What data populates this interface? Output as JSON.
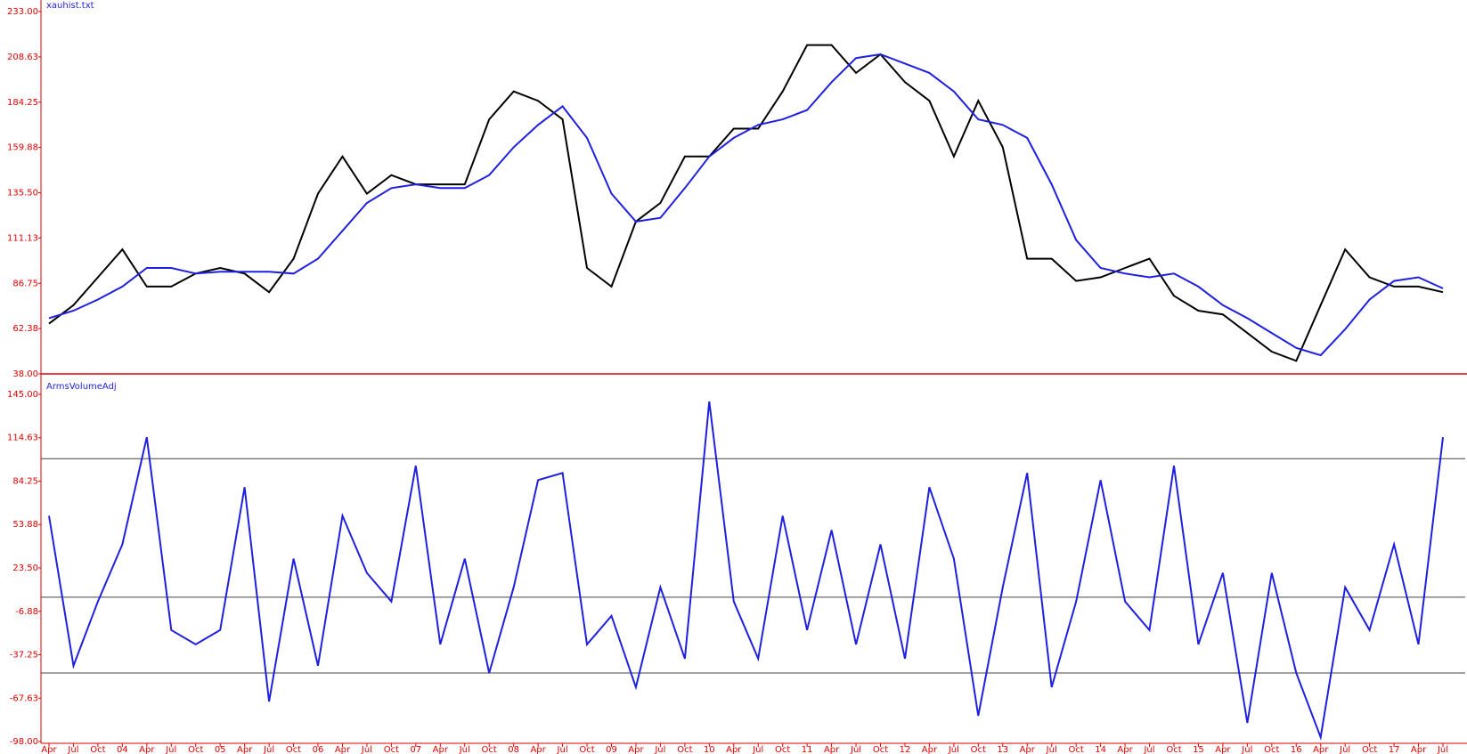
{
  "chart_data": [
    {
      "type": "line",
      "title": "xauhist.txt",
      "ylim": [
        38,
        233
      ],
      "yticks": [
        {
          "value": 38,
          "label": "38.00"
        },
        {
          "value": 62.38,
          "label": "62.38"
        },
        {
          "value": 86.75,
          "label": "86.75"
        },
        {
          "value": 111.13,
          "label": "111.13"
        },
        {
          "value": 135.5,
          "label": "135.50"
        },
        {
          "value": 159.88,
          "label": "159.88"
        },
        {
          "value": 184.25,
          "label": "184.25"
        },
        {
          "value": 208.63,
          "label": "208.63"
        },
        {
          "value": 233,
          "label": "233.00"
        }
      ],
      "series": [
        {
          "color": "#000000",
          "values": [
            65,
            75,
            90,
            105,
            85,
            85,
            92,
            95,
            92,
            82,
            100,
            135,
            155,
            135,
            145,
            140,
            140,
            140,
            175,
            190,
            185,
            175,
            95,
            85,
            120,
            130,
            155,
            155,
            170,
            170,
            190,
            215,
            215,
            200,
            210,
            195,
            185,
            155,
            185,
            160,
            100,
            100,
            88,
            90,
            95,
            100,
            80,
            72,
            70,
            60,
            50,
            45,
            75,
            105,
            90,
            85,
            85,
            82
          ]
        },
        {
          "color": "#1f1fe0",
          "values": [
            68,
            72,
            78,
            85,
            95,
            95,
            92,
            93,
            93,
            93,
            92,
            100,
            115,
            130,
            138,
            140,
            138,
            138,
            145,
            160,
            172,
            182,
            165,
            135,
            120,
            122,
            138,
            155,
            165,
            172,
            175,
            180,
            195,
            208,
            210,
            205,
            200,
            190,
            175,
            172,
            165,
            140,
            110,
            95,
            92,
            90,
            92,
            85,
            75,
            68,
            60,
            52,
            48,
            62,
            78,
            88,
            90,
            84
          ]
        }
      ]
    },
    {
      "type": "line",
      "title": "ArmsVolumeAdj",
      "categories": [
        "Apr",
        "Jul",
        "Oct",
        "04",
        "Apr",
        "Jul",
        "Oct",
        "05",
        "Apr",
        "Jul",
        "Oct",
        "06",
        "Apr",
        "Jul",
        "Oct",
        "07",
        "Apr",
        "Jul",
        "Oct",
        "08",
        "Apr",
        "Jul",
        "Oct",
        "09",
        "Apr",
        "Jul",
        "Oct",
        "10",
        "Apr",
        "Jul",
        "Oct",
        "11",
        "Apr",
        "Jul",
        "Oct",
        "12",
        "Apr",
        "Jul",
        "Oct",
        "13",
        "Apr",
        "Jul",
        "Oct",
        "14",
        "Apr",
        "Jul",
        "Oct",
        "15",
        "Apr",
        "Jul",
        "Oct",
        "16",
        "Apr",
        "Jul",
        "Oct",
        "17",
        "Apr",
        "Jul"
      ],
      "ylim": [
        -98,
        145
      ],
      "yticks": [
        {
          "value": -98,
          "label": "-98.00"
        },
        {
          "value": -67.63,
          "label": "-67.63"
        },
        {
          "value": -37.25,
          "label": "-37.25"
        },
        {
          "value": -6.88,
          "label": "-6.88"
        },
        {
          "value": 23.5,
          "label": "23.50"
        },
        {
          "value": 53.88,
          "label": "53.88"
        },
        {
          "value": 84.25,
          "label": "84.25"
        },
        {
          "value": 114.63,
          "label": "114.63"
        },
        {
          "value": 145,
          "label": "145.00"
        }
      ],
      "hlines": [
        100,
        3,
        -50
      ],
      "series": [
        {
          "color": "#1f1fe0",
          "values": [
            60,
            -45,
            0,
            40,
            115,
            -20,
            -30,
            -20,
            80,
            -70,
            30,
            -45,
            60,
            20,
            0,
            95,
            -30,
            30,
            -50,
            10,
            85,
            90,
            -30,
            -10,
            -60,
            10,
            -40,
            140,
            0,
            -40,
            60,
            -20,
            50,
            -30,
            40,
            -40,
            80,
            30,
            -80,
            10,
            90,
            -60,
            0,
            85,
            0,
            -20,
            95,
            -30,
            20,
            -85,
            20,
            -50,
            -95,
            10,
            -20,
            40,
            -30,
            115
          ]
        }
      ]
    }
  ]
}
